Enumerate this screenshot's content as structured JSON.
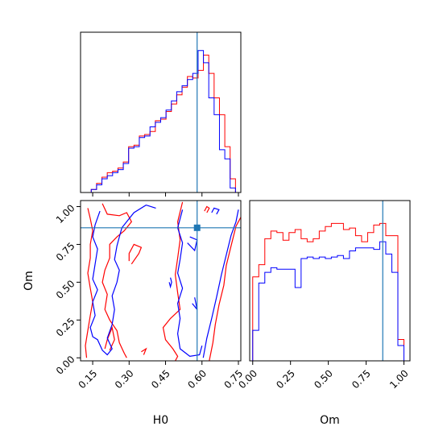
{
  "chart_data": {
    "type": "corner",
    "parameters": [
      "H0",
      "Om"
    ],
    "truth": {
      "H0": 0.58,
      "Om": 0.86
    },
    "colors": {
      "series_a": "#ff0000",
      "series_b": "#0000ff",
      "truth": "#1f77b4"
    },
    "grid": false,
    "panels": [
      {
        "id": "H0-marginal",
        "type": "step-histogram",
        "x_param": "H0",
        "xlim": [
          0.1,
          0.76
        ],
        "ylim": [
          0,
          1.05
        ],
        "x_edges": [
          0.1,
          0.122,
          0.144,
          0.166,
          0.188,
          0.21,
          0.232,
          0.254,
          0.276,
          0.298,
          0.32,
          0.342,
          0.364,
          0.386,
          0.408,
          0.43,
          0.452,
          0.474,
          0.496,
          0.518,
          0.54,
          0.562,
          0.584,
          0.606,
          0.628,
          0.65,
          0.672,
          0.694,
          0.716,
          0.738,
          0.76
        ],
        "series": [
          {
            "color": "#ff0000",
            "values": [
              0,
              0,
              0.02,
              0.06,
              0.1,
              0.13,
              0.14,
              0.16,
              0.2,
              0.3,
              0.31,
              0.37,
              0.38,
              0.4,
              0.47,
              0.48,
              0.53,
              0.58,
              0.64,
              0.69,
              0.76,
              0.75,
              0.8,
              0.9,
              0.78,
              0.62,
              0.51,
              0.3,
              0.09,
              0
            ]
          },
          {
            "color": "#0000ff",
            "values": [
              0,
              0,
              0.02,
              0.05,
              0.09,
              0.11,
              0.13,
              0.15,
              0.19,
              0.29,
              0.3,
              0.36,
              0.37,
              0.43,
              0.46,
              0.49,
              0.54,
              0.6,
              0.66,
              0.7,
              0.74,
              0.78,
              0.93,
              0.85,
              0.62,
              0.51,
              0.28,
              0.22,
              0.03,
              0
            ]
          }
        ],
        "x_tick_values": [
          0.15,
          0.3,
          0.45,
          0.6,
          0.75
        ],
        "x_tick_labels": []
      },
      {
        "id": "Om-vs-H0",
        "type": "contour",
        "x_param": "H0",
        "y_param": "Om",
        "xlim": [
          0.1,
          0.76
        ],
        "ylim": [
          -0.02,
          1.04
        ],
        "xlabel": "H0",
        "ylabel": "Om",
        "x_tick_values": [
          0.15,
          0.3,
          0.45,
          0.6,
          0.75
        ],
        "x_tick_labels": [
          "0.15",
          "0.30",
          "0.45",
          "0.60",
          "0.75"
        ],
        "y_tick_values": [
          0,
          0.25,
          0.5,
          0.75,
          1
        ],
        "y_tick_labels": [
          "0.00",
          "0.25",
          "0.50",
          "0.75",
          "1.00"
        ],
        "contours": [
          {
            "color": "#ff0000",
            "points": [
              [
                0.13,
                0.99
              ],
              [
                0.14,
                0.92
              ],
              [
                0.15,
                0.84
              ],
              [
                0.14,
                0.75
              ],
              [
                0.14,
                0.66
              ],
              [
                0.13,
                0.56
              ],
              [
                0.14,
                0.46
              ],
              [
                0.15,
                0.37
              ],
              [
                0.14,
                0.28
              ],
              [
                0.13,
                0.18
              ],
              [
                0.12,
                0.08
              ],
              [
                0.125,
                0
              ]
            ]
          },
          {
            "color": "#ff0000",
            "points": [
              [
                0.19,
                1.02
              ],
              [
                0.21,
                0.95
              ],
              [
                0.26,
                0.94
              ],
              [
                0.29,
                0.96
              ],
              [
                0.31,
                0.9
              ],
              [
                0.28,
                0.84
              ],
              [
                0.25,
                0.8
              ],
              [
                0.22,
                0.75
              ],
              [
                0.22,
                0.66
              ],
              [
                0.2,
                0.58
              ],
              [
                0.19,
                0.5
              ],
              [
                0.21,
                0.42
              ],
              [
                0.2,
                0.32
              ],
              [
                0.22,
                0.25
              ],
              [
                0.25,
                0.18
              ],
              [
                0.26,
                0.1
              ],
              [
                0.28,
                0.03
              ],
              [
                0.29,
                0
              ]
            ]
          },
          {
            "color": "#ff0000",
            "points": [
              [
                0.2,
                0.06
              ],
              [
                0.21,
                0.12
              ],
              [
                0.23,
                0.2
              ],
              [
                0.24,
                0.12
              ],
              [
                0.22,
                0.05
              ]
            ]
          },
          {
            "color": "#ff0000",
            "points": [
              [
                0.31,
                0.62
              ],
              [
                0.34,
                0.69
              ],
              [
                0.35,
                0.73
              ],
              [
                0.32,
                0.75
              ],
              [
                0.3,
                0.69
              ],
              [
                0.3,
                0.64
              ]
            ]
          },
          {
            "color": "#ff0000",
            "points": [
              [
                0.36,
                0.02
              ],
              [
                0.37,
                0.06
              ],
              [
                0.35,
                0.04
              ]
            ]
          },
          {
            "color": "#ff0000",
            "points": [
              [
                0.52,
                1.03
              ],
              [
                0.5,
                0.9
              ],
              [
                0.51,
                0.78
              ],
              [
                0.5,
                0.66
              ],
              [
                0.49,
                0.55
              ],
              [
                0.5,
                0.43
              ],
              [
                0.51,
                0.32
              ],
              [
                0.47,
                0.26
              ],
              [
                0.44,
                0.2
              ],
              [
                0.45,
                0.12
              ],
              [
                0.48,
                0.06
              ],
              [
                0.5,
                0.01
              ],
              [
                0.49,
                -0.02
              ]
            ]
          },
          {
            "color": "#ff0000",
            "points": [
              [
                0.63,
                -0.02
              ],
              [
                0.645,
                0.1
              ],
              [
                0.655,
                0.22
              ],
              [
                0.67,
                0.35
              ],
              [
                0.69,
                0.48
              ],
              [
                0.7,
                0.61
              ],
              [
                0.72,
                0.74
              ],
              [
                0.74,
                0.87
              ],
              [
                0.76,
                0.93
              ]
            ]
          },
          {
            "color": "#ff0000",
            "points": [
              [
                0.61,
                0.97
              ],
              [
                0.62,
                1.0
              ],
              [
                0.63,
                0.99
              ],
              [
                0.62,
                0.96
              ]
            ]
          },
          {
            "color": "#0000ff",
            "points": [
              [
                0.18,
                0.97
              ],
              [
                0.16,
                0.88
              ],
              [
                0.15,
                0.8
              ],
              [
                0.17,
                0.72
              ],
              [
                0.16,
                0.62
              ],
              [
                0.15,
                0.52
              ],
              [
                0.17,
                0.45
              ],
              [
                0.15,
                0.37
              ],
              [
                0.16,
                0.28
              ],
              [
                0.14,
                0.2
              ],
              [
                0.15,
                0.14
              ],
              [
                0.17,
                0.12
              ],
              [
                0.19,
                0.05
              ],
              [
                0.21,
                0.02
              ],
              [
                0.23,
                0.06
              ],
              [
                0.21,
                0.13
              ],
              [
                0.23,
                0.22
              ],
              [
                0.24,
                0.32
              ],
              [
                0.23,
                0.41
              ],
              [
                0.25,
                0.5
              ],
              [
                0.26,
                0.58
              ],
              [
                0.24,
                0.65
              ],
              [
                0.25,
                0.74
              ],
              [
                0.26,
                0.8
              ],
              [
                0.27,
                0.86
              ],
              [
                0.32,
                0.96
              ],
              [
                0.37,
                1.01
              ],
              [
                0.41,
                0.99
              ]
            ]
          },
          {
            "color": "#0000ff",
            "points": [
              [
                0.47,
                0.53
              ],
              [
                0.475,
                0.5
              ],
              [
                0.47,
                0.47
              ],
              [
                0.465,
                0.5
              ]
            ]
          },
          {
            "color": "#0000ff",
            "points": [
              [
                0.52,
                0.98
              ],
              [
                0.5,
                0.86
              ],
              [
                0.52,
                0.76
              ],
              [
                0.51,
                0.65
              ],
              [
                0.5,
                0.56
              ],
              [
                0.52,
                0.46
              ],
              [
                0.5,
                0.36
              ],
              [
                0.51,
                0.26
              ],
              [
                0.5,
                0.16
              ],
              [
                0.51,
                0.06
              ],
              [
                0.55,
                0.01
              ],
              [
                0.59,
                0.02
              ],
              [
                0.6,
                0.08
              ]
            ]
          },
          {
            "color": "#0000ff",
            "points": [
              [
                0.54,
                0.76
              ],
              [
                0.57,
                0.71
              ],
              [
                0.58,
                0.78
              ],
              [
                0.55,
                0.8
              ]
            ]
          },
          {
            "color": "#0000ff",
            "points": [
              [
                0.56,
                0.36
              ],
              [
                0.58,
                0.32
              ],
              [
                0.57,
                0.4
              ]
            ]
          },
          {
            "color": "#0000ff",
            "points": [
              [
                0.605,
                0.0
              ],
              [
                0.62,
                0.13
              ],
              [
                0.64,
                0.26
              ],
              [
                0.66,
                0.4
              ],
              [
                0.68,
                0.55
              ],
              [
                0.7,
                0.68
              ],
              [
                0.72,
                0.81
              ],
              [
                0.74,
                0.9
              ],
              [
                0.75,
                0.98
              ]
            ]
          },
          {
            "color": "#0000ff",
            "points": [
              [
                0.64,
                0.96
              ],
              [
                0.65,
                0.99
              ],
              [
                0.67,
                0.98
              ],
              [
                0.66,
                0.95
              ]
            ]
          }
        ]
      },
      {
        "id": "Om-marginal",
        "type": "step-histogram",
        "x_param": "Om",
        "xlim": [
          -0.02,
          1.04
        ],
        "ylim": [
          0,
          1.05
        ],
        "xlabel": "Om",
        "x_tick_values": [
          0,
          0.25,
          0.5,
          0.75,
          1
        ],
        "x_tick_labels": [
          "0.00",
          "0.25",
          "0.50",
          "0.75",
          "1.00"
        ],
        "x_edges": [
          0,
          0.04,
          0.08,
          0.12,
          0.16,
          0.2,
          0.24,
          0.28,
          0.32,
          0.36,
          0.4,
          0.44,
          0.48,
          0.52,
          0.56,
          0.6,
          0.64,
          0.68,
          0.72,
          0.76,
          0.8,
          0.84,
          0.88,
          0.92,
          0.96,
          1.0
        ],
        "series": [
          {
            "color": "#ff0000",
            "values": [
              0.55,
              0.63,
              0.8,
              0.85,
              0.84,
              0.79,
              0.84,
              0.86,
              0.8,
              0.78,
              0.8,
              0.85,
              0.88,
              0.9,
              0.9,
              0.86,
              0.87,
              0.82,
              0.78,
              0.84,
              0.89,
              0.9,
              0.82,
              0.82,
              0.14
            ]
          },
          {
            "color": "#0000ff",
            "values": [
              0.2,
              0.51,
              0.58,
              0.61,
              0.6,
              0.6,
              0.6,
              0.48,
              0.67,
              0.68,
              0.67,
              0.68,
              0.67,
              0.68,
              0.69,
              0.67,
              0.72,
              0.74,
              0.74,
              0.74,
              0.73,
              0.78,
              0.7,
              0.58,
              0.1
            ]
          }
        ]
      }
    ]
  }
}
